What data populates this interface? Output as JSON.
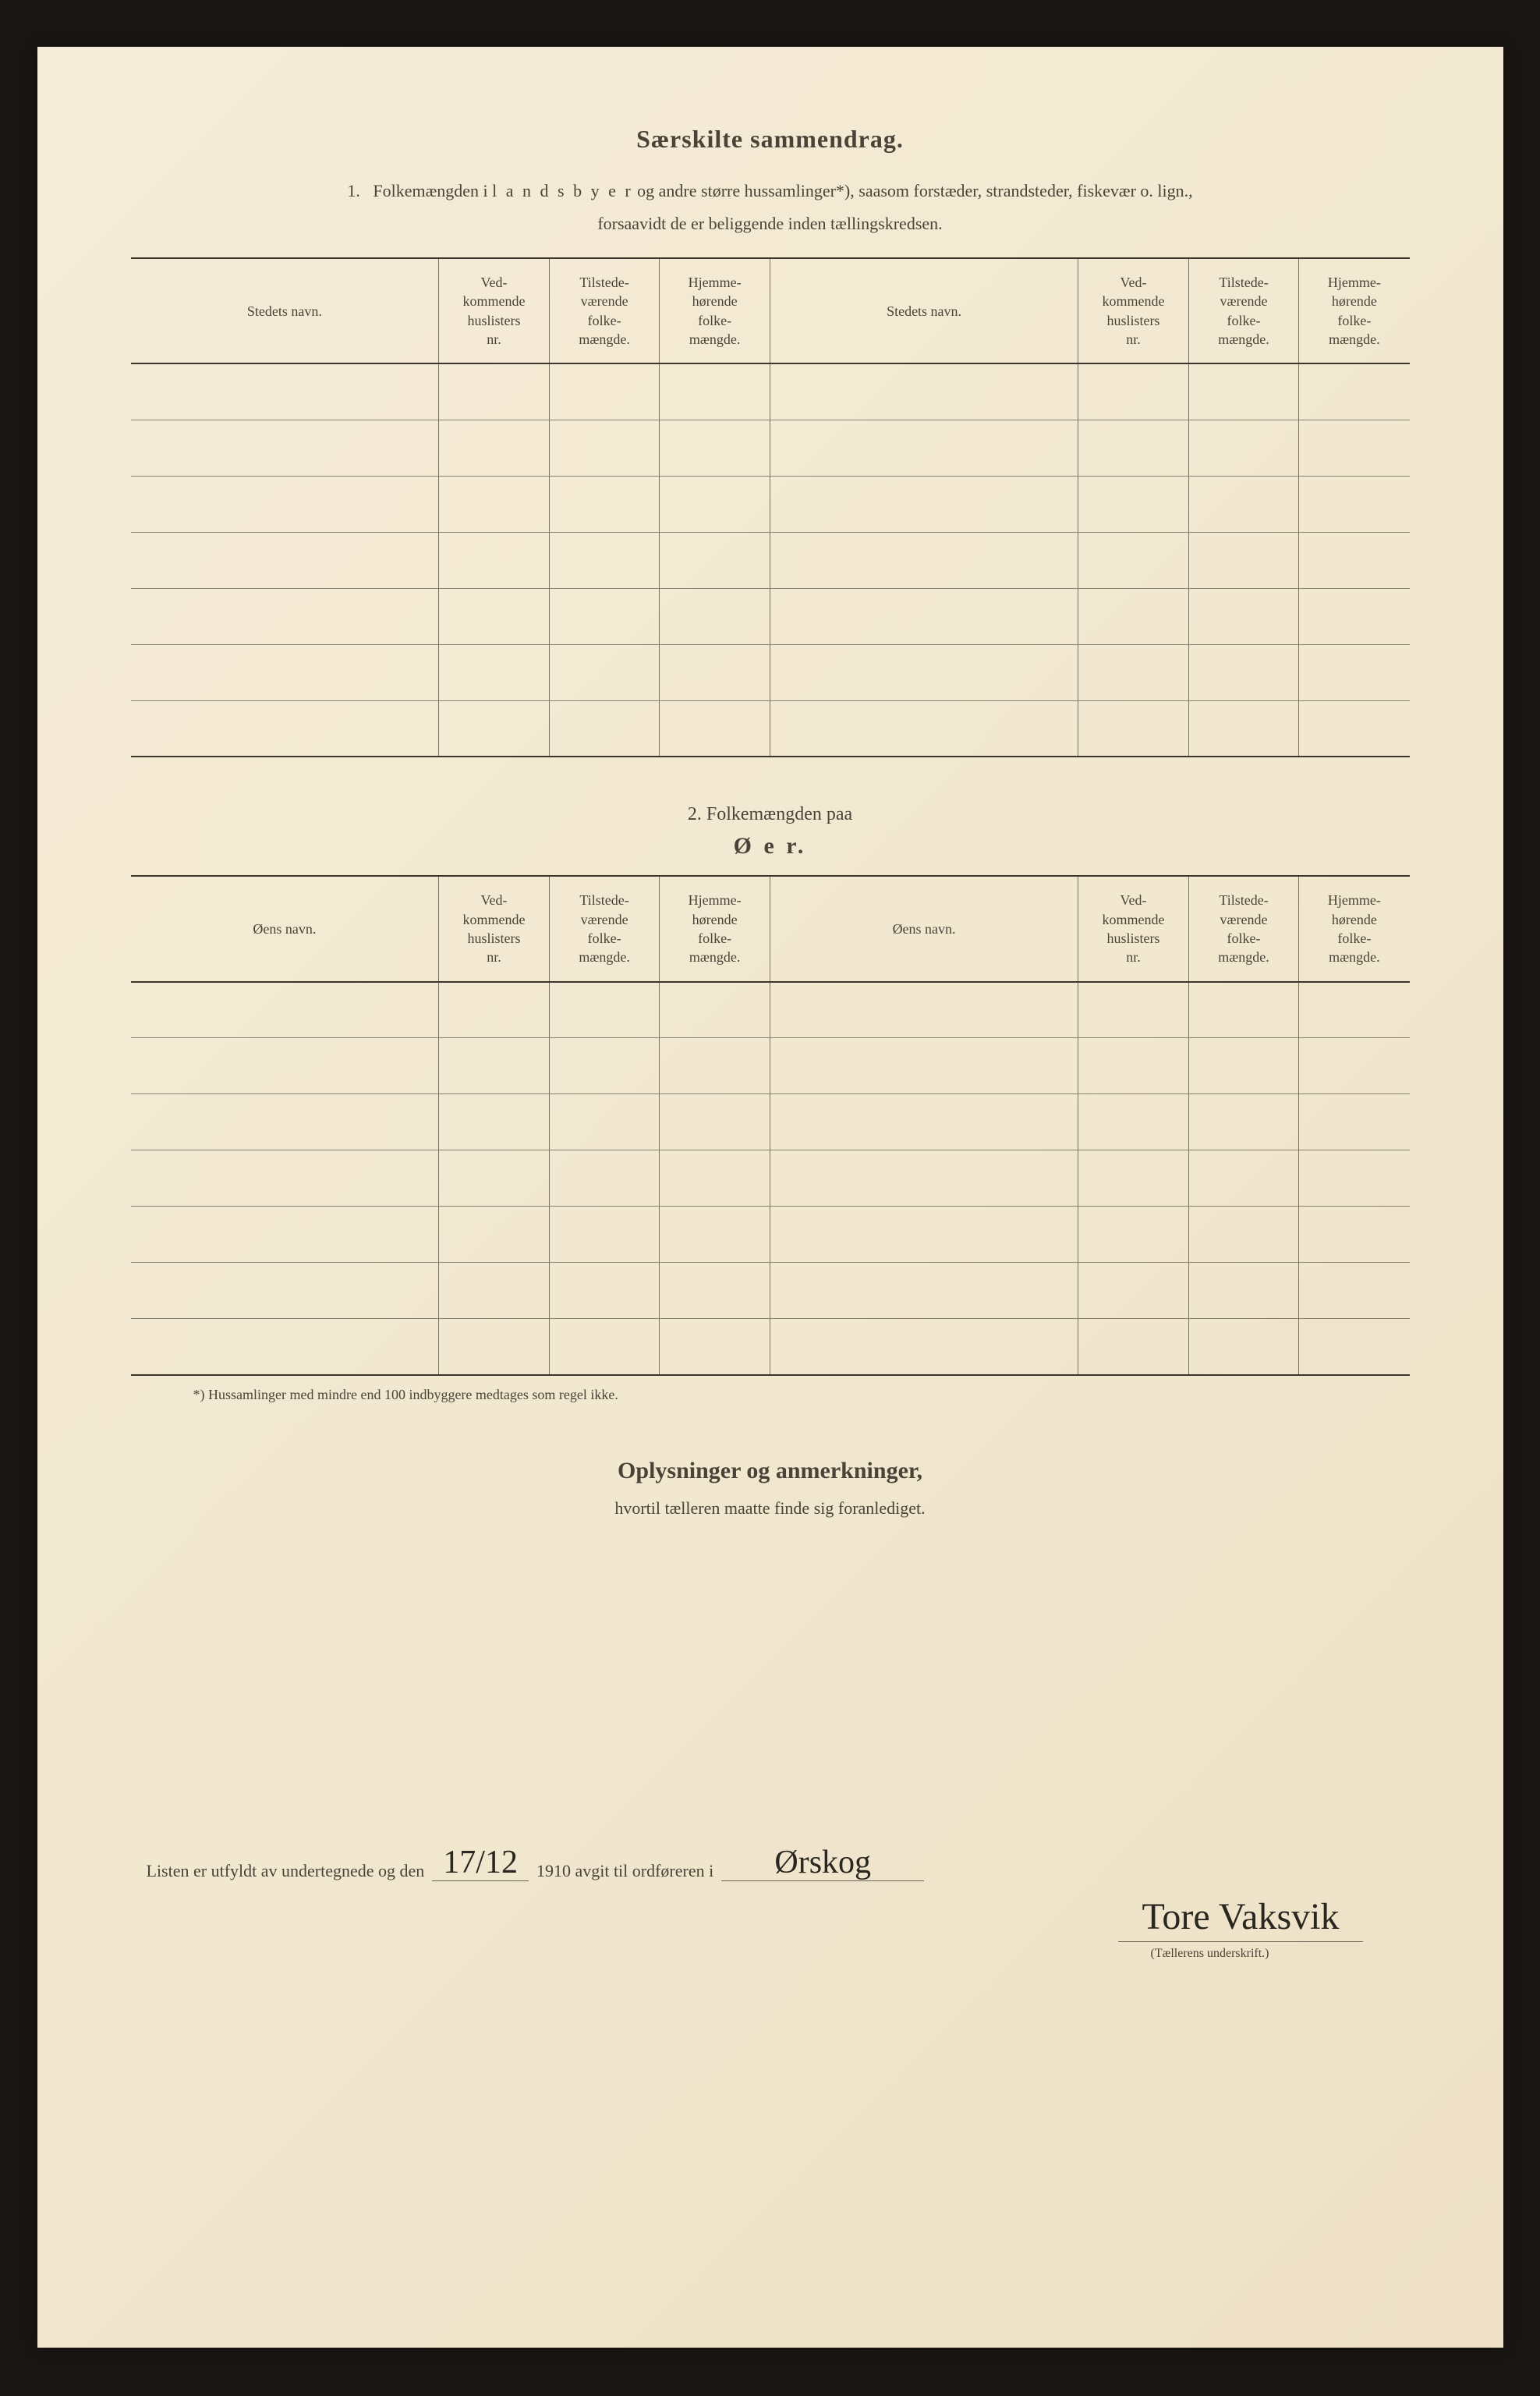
{
  "header": {
    "title": "Særskilte sammendrag.",
    "section1_num": "1.",
    "section1_text_a": "Folkemængden i ",
    "section1_text_spaced": "l a n d s b y e r",
    "section1_text_b": " og andre større hussamlinger*), saasom forstæder, strandsteder, fiskevær o. lign.,",
    "section1_text_line2": "forsaavidt de er beliggende inden tællingskredsen."
  },
  "table1": {
    "headers": {
      "name_left": "Stedets navn.",
      "col2": "Ved-\nkommende\nhuslisters\nnr.",
      "col3": "Tilstede-\nværende\nfolke-\nmængde.",
      "col4": "Hjemme-\nhørende\nfolke-\nmængde.",
      "name_right": "Stedets navn.",
      "col6": "Ved-\nkommende\nhuslisters\nnr.",
      "col7": "Tilstede-\nværende\nfolke-\nmængde.",
      "col8": "Hjemme-\nhørende\nfolke-\nmængde."
    },
    "row_count": 7
  },
  "section2": {
    "pre": "2.   Folkemængden paa",
    "big": "Ø e r."
  },
  "table2": {
    "headers": {
      "name_left": "Øens navn.",
      "col2": "Ved-\nkommende\nhuslisters\nnr.",
      "col3": "Tilstede-\nværende\nfolke-\nmængde.",
      "col4": "Hjemme-\nhørende\nfolke-\nmængde.",
      "name_right": "Øens navn.",
      "col6": "Ved-\nkommende\nhuslisters\nnr.",
      "col7": "Tilstede-\nværende\nfolke-\nmængde.",
      "col8": "Hjemme-\nhørende\nfolke-\nmængde."
    },
    "row_count": 7
  },
  "footnote": "*)  Hussamlinger med mindre end 100 indbyggere medtages som regel ikke.",
  "remarks": {
    "title": "Oplysninger og anmerkninger,",
    "sub": "hvortil tælleren maatte finde sig foranlediget."
  },
  "signature": {
    "text_a": "Listen er utfyldt av undertegnede og den",
    "date": "17/12",
    "text_b": "1910 avgit til ordføreren i",
    "place": "Ørskog",
    "name": "Tore Vaksvik",
    "caption": "(Tællerens underskrift.)"
  }
}
